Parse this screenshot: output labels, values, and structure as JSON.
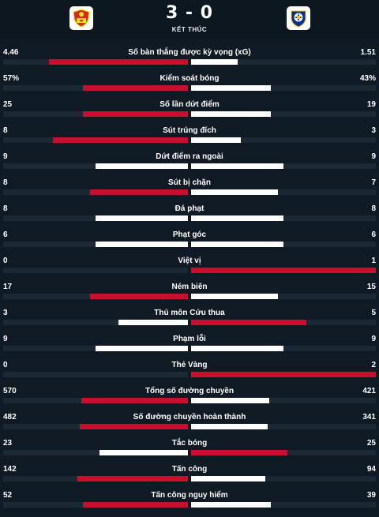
{
  "match": {
    "home_logo": "manchester-united-crest",
    "away_logo": "leicester-city-crest",
    "score": "3 - 0",
    "status": "KẾT THÚC"
  },
  "colors": {
    "winner": "#c8102e",
    "other": "#ffffff",
    "track": "#1c2935"
  },
  "stats": [
    {
      "label": "Số bàn thắng được kỳ vọng (xG)",
      "home": "4.46",
      "away": "1.51",
      "home_share": 0.75,
      "away_share": 0.25,
      "winner": "home"
    },
    {
      "label": "Kiểm soát bóng",
      "home": "57%",
      "away": "43%",
      "home_share": 0.57,
      "away_share": 0.43,
      "winner": "home"
    },
    {
      "label": "Số lần dứt điểm",
      "home": "25",
      "away": "19",
      "home_share": 0.57,
      "away_share": 0.43,
      "winner": "home"
    },
    {
      "label": "Sút trúng đích",
      "home": "8",
      "away": "3",
      "home_share": 0.73,
      "away_share": 0.27,
      "winner": "home"
    },
    {
      "label": "Dứt điểm ra ngoài",
      "home": "9",
      "away": "9",
      "home_share": 0.5,
      "away_share": 0.5,
      "winner": "none"
    },
    {
      "label": "Sút bị chặn",
      "home": "8",
      "away": "7",
      "home_share": 0.53,
      "away_share": 0.47,
      "winner": "home"
    },
    {
      "label": "Đá phạt",
      "home": "8",
      "away": "8",
      "home_share": 0.5,
      "away_share": 0.5,
      "winner": "none"
    },
    {
      "label": "Phạt góc",
      "home": "6",
      "away": "6",
      "home_share": 0.5,
      "away_share": 0.5,
      "winner": "none"
    },
    {
      "label": "Việt vị",
      "home": "0",
      "away": "1",
      "home_share": 0.0,
      "away_share": 1.0,
      "winner": "away"
    },
    {
      "label": "Ném biên",
      "home": "17",
      "away": "15",
      "home_share": 0.53,
      "away_share": 0.47,
      "winner": "home"
    },
    {
      "label": "Thủ môn Cứu thua",
      "home": "3",
      "away": "5",
      "home_share": 0.375,
      "away_share": 0.625,
      "winner": "away"
    },
    {
      "label": "Phạm lỗi",
      "home": "9",
      "away": "9",
      "home_share": 0.5,
      "away_share": 0.5,
      "winner": "none"
    },
    {
      "label": "Thẻ Vàng",
      "home": "0",
      "away": "2",
      "home_share": 0.0,
      "away_share": 1.0,
      "winner": "away"
    },
    {
      "label": "Tổng số đường chuyền",
      "home": "570",
      "away": "421",
      "home_share": 0.575,
      "away_share": 0.425,
      "winner": "home"
    },
    {
      "label": "Số đường chuyền hoàn thành",
      "home": "482",
      "away": "341",
      "home_share": 0.585,
      "away_share": 0.415,
      "winner": "home"
    },
    {
      "label": "Tắc bóng",
      "home": "23",
      "away": "25",
      "home_share": 0.48,
      "away_share": 0.52,
      "winner": "away"
    },
    {
      "label": "Tấn công",
      "home": "142",
      "away": "94",
      "home_share": 0.6,
      "away_share": 0.4,
      "winner": "home"
    },
    {
      "label": "Tấn công nguy hiểm",
      "home": "52",
      "away": "39",
      "home_share": 0.57,
      "away_share": 0.43,
      "winner": "home"
    }
  ]
}
